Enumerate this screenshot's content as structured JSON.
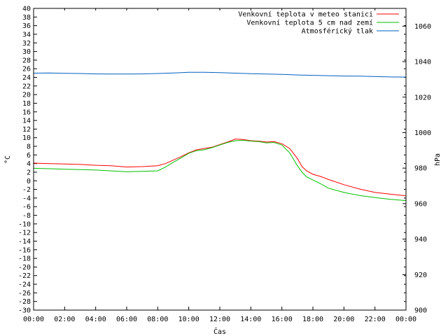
{
  "chart_data": {
    "type": "line",
    "xlabel": "Čas",
    "ylabel": "°C",
    "y2label": "hPa",
    "x_range": [
      0,
      24
    ],
    "x_ticks": [
      "00:00",
      "02:00",
      "04:00",
      "06:00",
      "08:00",
      "10:00",
      "12:00",
      "14:00",
      "16:00",
      "18:00",
      "20:00",
      "22:00",
      "00:00"
    ],
    "ylim": [
      -30,
      40
    ],
    "y_ticks": [
      40,
      38,
      36,
      34,
      32,
      30,
      28,
      26,
      24,
      22,
      20,
      18,
      16,
      14,
      12,
      10,
      8,
      6,
      4,
      2,
      0,
      -2,
      -4,
      -6,
      -8,
      -10,
      -12,
      -14,
      -16,
      -18,
      -20,
      -22,
      -24,
      -26,
      -28,
      -30
    ],
    "y2lim": [
      900,
      1070
    ],
    "y2_ticks": [
      1060,
      1040,
      1020,
      1000,
      980,
      960,
      940,
      920,
      900
    ],
    "legend_position": "top-right",
    "series": [
      {
        "name": "Venkovní teplota v meteo stanici",
        "color": "#ff0000",
        "axis": "y",
        "x": [
          0,
          1,
          2,
          3,
          4,
          5,
          6,
          7,
          8,
          8.5,
          9,
          9.5,
          10,
          10.5,
          11,
          11.5,
          12,
          12.5,
          13,
          13.5,
          14,
          14.5,
          15,
          15.5,
          16,
          16.5,
          17,
          17.3,
          17.6,
          18,
          18.5,
          19,
          20,
          21,
          22,
          23,
          24
        ],
        "y": [
          4.1,
          4.0,
          3.9,
          3.8,
          3.6,
          3.5,
          3.2,
          3.3,
          3.5,
          4.0,
          4.8,
          5.6,
          6.5,
          7.2,
          7.5,
          7.8,
          8.4,
          9.0,
          9.7,
          9.6,
          9.3,
          9.2,
          9.0,
          9.1,
          8.6,
          7.5,
          5.2,
          3.3,
          2.3,
          1.5,
          1.0,
          0.3,
          -0.9,
          -1.9,
          -2.7,
          -3.1,
          -3.5
        ]
      },
      {
        "name": "Venkovní teplota 5 cm nad zemí",
        "color": "#00c000",
        "axis": "y",
        "x": [
          0,
          1,
          2,
          3,
          4,
          5,
          6,
          7,
          8,
          8.5,
          9,
          9.5,
          10,
          10.5,
          11,
          11.5,
          12,
          12.5,
          13,
          13.5,
          14,
          14.5,
          15,
          15.5,
          16,
          16.5,
          17,
          17.3,
          17.6,
          18,
          18.5,
          19,
          20,
          21,
          22,
          23,
          24
        ],
        "y": [
          2.9,
          2.8,
          2.7,
          2.6,
          2.5,
          2.3,
          2.1,
          2.2,
          2.3,
          3.2,
          4.3,
          5.3,
          6.4,
          7.0,
          7.2,
          7.7,
          8.3,
          8.9,
          9.3,
          9.4,
          9.2,
          9.1,
          8.8,
          8.9,
          8.3,
          6.5,
          3.5,
          2.0,
          0.9,
          0.2,
          -0.7,
          -1.7,
          -2.7,
          -3.4,
          -3.9,
          -4.3,
          -4.6
        ]
      },
      {
        "name": "Atmosférický tlak",
        "color": "#0060c0",
        "axis": "y2",
        "x": [
          0,
          1,
          2,
          3,
          4,
          5,
          6,
          7,
          8,
          9,
          10,
          11,
          12,
          13,
          14,
          15,
          16,
          17,
          18,
          19,
          20,
          21,
          22,
          23,
          24
        ],
        "y": [
          1033.5,
          1033.6,
          1033.4,
          1033.3,
          1033.1,
          1033.0,
          1033.0,
          1033.1,
          1033.3,
          1033.6,
          1034.0,
          1034.0,
          1033.8,
          1033.5,
          1033.2,
          1033.0,
          1032.8,
          1032.5,
          1032.3,
          1032.1,
          1031.9,
          1031.8,
          1031.6,
          1031.4,
          1031.3
        ]
      }
    ]
  }
}
